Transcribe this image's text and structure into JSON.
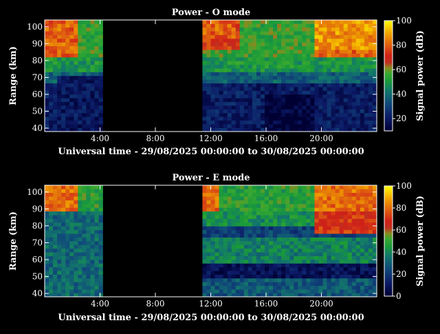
{
  "chart_data": [
    {
      "type": "heatmap",
      "title": "Power - O mode",
      "xlabel": "Universal time - 29/08/2025 00:00:00 to 30/08/2025 00:00:00",
      "ylabel": "Range (km)",
      "xlim": [
        0,
        24
      ],
      "ylim": [
        38,
        104
      ],
      "xticks": [
        {
          "v": 4,
          "label": "4:00"
        },
        {
          "v": 8,
          "label": "8:00"
        },
        {
          "v": 12,
          "label": "12:00"
        },
        {
          "v": 16,
          "label": "16:00"
        },
        {
          "v": 20,
          "label": "20:00"
        }
      ],
      "yticks": [
        {
          "v": 40,
          "label": "40"
        },
        {
          "v": 50,
          "label": "50"
        },
        {
          "v": 60,
          "label": "60"
        },
        {
          "v": 70,
          "label": "70"
        },
        {
          "v": 80,
          "label": "80"
        },
        {
          "v": 90,
          "label": "90"
        },
        {
          "v": 100,
          "label": "100"
        }
      ],
      "data_gap": [
        4.4,
        11.3
      ],
      "colorbar": {
        "label": "Signal power (dB)",
        "range": [
          10,
          100
        ],
        "ticks": [
          {
            "v": 20,
            "label": "20"
          },
          {
            "v": 40,
            "label": "40"
          },
          {
            "v": 60,
            "label": "60"
          },
          {
            "v": 80,
            "label": "80"
          },
          {
            "v": 100,
            "label": "100"
          }
        ]
      }
    },
    {
      "type": "heatmap",
      "title": "Power - E mode",
      "xlabel": "Universal time - 29/08/2025 00:00:00 to 30/08/2025 00:00:00",
      "ylabel": "Range (km)",
      "xlim": [
        0,
        24
      ],
      "ylim": [
        38,
        104
      ],
      "xticks": [
        {
          "v": 4,
          "label": "4:00"
        },
        {
          "v": 8,
          "label": "8:00"
        },
        {
          "v": 12,
          "label": "12:00"
        },
        {
          "v": 16,
          "label": "16:00"
        },
        {
          "v": 20,
          "label": "20:00"
        }
      ],
      "yticks": [
        {
          "v": 40,
          "label": "40"
        },
        {
          "v": 50,
          "label": "50"
        },
        {
          "v": 60,
          "label": "60"
        },
        {
          "v": 70,
          "label": "70"
        },
        {
          "v": 80,
          "label": "80"
        },
        {
          "v": 90,
          "label": "90"
        },
        {
          "v": 100,
          "label": "100"
        }
      ],
      "data_gap": [
        4.4,
        11.3
      ],
      "colorbar": {
        "label": "Signal power (dB)",
        "range": [
          0,
          100
        ],
        "ticks": [
          {
            "v": 0,
            "label": "0"
          },
          {
            "v": 20,
            "label": "20"
          },
          {
            "v": 40,
            "label": "40"
          },
          {
            "v": 60,
            "label": "60"
          },
          {
            "v": 80,
            "label": "80"
          },
          {
            "v": 100,
            "label": "100"
          }
        ]
      }
    }
  ]
}
